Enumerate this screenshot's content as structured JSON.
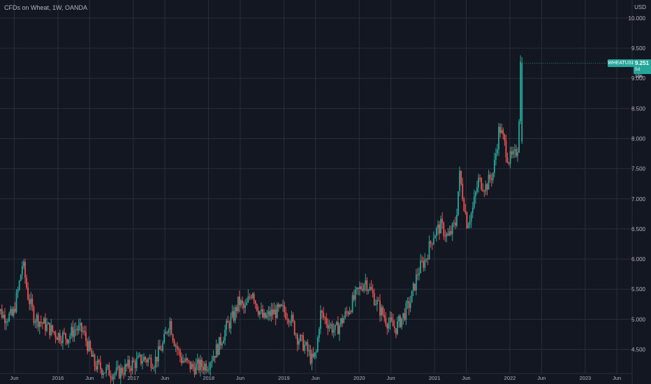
{
  "header": {
    "title": "CFDs on Wheat, 1W, OANDA",
    "currency": "USD"
  },
  "price_tag": {
    "symbol": "WHEATUSD",
    "price": "9.251",
    "countdown": "5d 15h"
  },
  "colors": {
    "background": "#131722",
    "grid": "#2a2e39",
    "up": "#26a69a",
    "down": "#ef5350",
    "axis_text": "#b2b5be"
  },
  "chart_data": {
    "type": "candlestick",
    "title": "CFDs on Wheat, 1W, OANDA",
    "xlabel": "",
    "ylabel": "",
    "y_unit": "USD",
    "ylim": [
      4.1,
      10.3
    ],
    "y_ticks": [
      "4.500",
      "5.000",
      "5.500",
      "6.000",
      "6.500",
      "7.000",
      "7.500",
      "8.000",
      "8.500",
      "9.000",
      "9.500",
      "10.000"
    ],
    "x_ticks": [
      {
        "label": "Jun",
        "date": 2015.42
      },
      {
        "label": "2016",
        "date": 2016.0
      },
      {
        "label": "Jun",
        "date": 2016.42
      },
      {
        "label": "2017",
        "date": 2017.0
      },
      {
        "label": "Jun",
        "date": 2017.42
      },
      {
        "label": "2018",
        "date": 2018.0
      },
      {
        "label": "Jun",
        "date": 2018.42
      },
      {
        "label": "2019",
        "date": 2019.0
      },
      {
        "label": "Jun",
        "date": 2019.42
      },
      {
        "label": "2020",
        "date": 2020.0
      },
      {
        "label": "Jun",
        "date": 2020.42
      },
      {
        "label": "2021",
        "date": 2021.0
      },
      {
        "label": "Jun",
        "date": 2021.42
      },
      {
        "label": "2022",
        "date": 2022.0
      },
      {
        "label": "Jun",
        "date": 2022.42
      },
      {
        "label": "2023",
        "date": 2023.0
      },
      {
        "label": "Jun",
        "date": 2023.42
      }
    ],
    "grid": true,
    "last_price": 9.251,
    "trend": [
      [
        2015.16,
        5.3
      ],
      [
        2015.3,
        5.05
      ],
      [
        2015.42,
        5.05
      ],
      [
        2015.5,
        5.55
      ],
      [
        2015.55,
        5.95
      ],
      [
        2015.62,
        5.4
      ],
      [
        2015.7,
        5.05
      ],
      [
        2015.85,
        4.9
      ],
      [
        2016.0,
        4.75
      ],
      [
        2016.15,
        4.7
      ],
      [
        2016.25,
        4.85
      ],
      [
        2016.35,
        4.8
      ],
      [
        2016.42,
        4.55
      ],
      [
        2016.5,
        4.25
      ],
      [
        2016.65,
        4.15
      ],
      [
        2016.8,
        4.1
      ],
      [
        2017.0,
        4.25
      ],
      [
        2017.15,
        4.35
      ],
      [
        2017.3,
        4.3
      ],
      [
        2017.42,
        4.6
      ],
      [
        2017.5,
        5.0
      ],
      [
        2017.55,
        4.7
      ],
      [
        2017.65,
        4.35
      ],
      [
        2017.8,
        4.2
      ],
      [
        2018.0,
        4.25
      ],
      [
        2018.15,
        4.55
      ],
      [
        2018.25,
        4.85
      ],
      [
        2018.35,
        5.05
      ],
      [
        2018.42,
        5.3
      ],
      [
        2018.5,
        5.15
      ],
      [
        2018.6,
        5.5
      ],
      [
        2018.65,
        5.25
      ],
      [
        2018.75,
        5.0
      ],
      [
        2018.85,
        5.1
      ],
      [
        2019.0,
        5.15
      ],
      [
        2019.1,
        5.05
      ],
      [
        2019.2,
        4.7
      ],
      [
        2019.3,
        4.55
      ],
      [
        2019.4,
        4.3
      ],
      [
        2019.45,
        4.45
      ],
      [
        2019.5,
        5.1
      ],
      [
        2019.6,
        4.95
      ],
      [
        2019.7,
        4.8
      ],
      [
        2019.85,
        5.1
      ],
      [
        2020.0,
        5.45
      ],
      [
        2020.1,
        5.65
      ],
      [
        2020.2,
        5.4
      ],
      [
        2020.3,
        5.15
      ],
      [
        2020.4,
        4.95
      ],
      [
        2020.5,
        4.85
      ],
      [
        2020.6,
        5.05
      ],
      [
        2020.7,
        5.3
      ],
      [
        2020.8,
        5.8
      ],
      [
        2020.9,
        6.0
      ],
      [
        2021.0,
        6.4
      ],
      [
        2021.1,
        6.55
      ],
      [
        2021.2,
        6.35
      ],
      [
        2021.3,
        6.6
      ],
      [
        2021.35,
        7.4
      ],
      [
        2021.4,
        7.0
      ],
      [
        2021.45,
        6.6
      ],
      [
        2021.52,
        6.8
      ],
      [
        2021.6,
        7.3
      ],
      [
        2021.7,
        7.2
      ],
      [
        2021.8,
        7.45
      ],
      [
        2021.88,
        8.2
      ],
      [
        2021.95,
        7.9
      ],
      [
        2022.0,
        7.65
      ],
      [
        2022.08,
        7.7
      ],
      [
        2022.13,
        7.9
      ],
      [
        2022.16,
        9.25
      ]
    ]
  }
}
